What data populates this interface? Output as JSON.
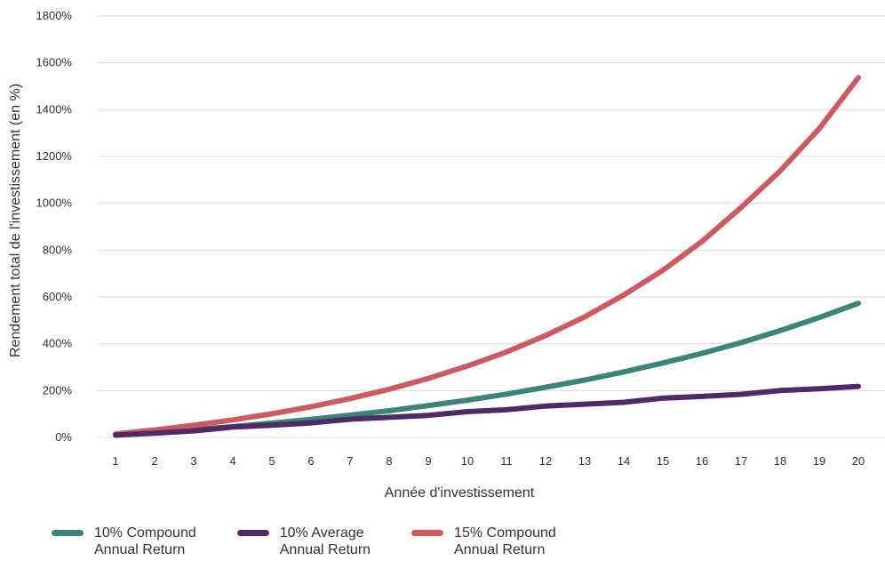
{
  "chart_data": {
    "type": "line",
    "xlabel": "Année d'investissement",
    "ylabel": "Rendement total de l'investissement (en %)",
    "x": [
      1,
      2,
      3,
      4,
      5,
      6,
      7,
      8,
      9,
      10,
      11,
      12,
      13,
      14,
      15,
      16,
      17,
      18,
      19,
      20
    ],
    "xticks": [
      "1",
      "2",
      "3",
      "4",
      "5",
      "6",
      "7",
      "8",
      "9",
      "10",
      "11",
      "12",
      "13",
      "14",
      "15",
      "16",
      "17",
      "18",
      "19",
      "20"
    ],
    "yticks": [
      "0%",
      "200%",
      "400%",
      "600%",
      "800%",
      "1000%",
      "1200%",
      "1400%",
      "1600%",
      "1800%"
    ],
    "ylim": [
      0,
      1800
    ],
    "grid": true,
    "legend_position": "bottom-left",
    "series": [
      {
        "name": "10% Compound\nAnnual Return",
        "color": "#3a8478",
        "values": [
          10,
          21,
          33,
          46,
          61,
          77,
          95,
          114,
          136,
          159,
          185,
          214,
          245,
          280,
          318,
          359,
          405,
          456,
          512,
          573
        ]
      },
      {
        "name": "10% Average\nAnnual Return",
        "color": "#4e2a67",
        "values": [
          10,
          18,
          28,
          44,
          52,
          62,
          78,
          86,
          94,
          110,
          118,
          134,
          142,
          150,
          168,
          175,
          184,
          200,
          208,
          218
        ]
      },
      {
        "name": "15% Compound\nAnnual Return",
        "color": "#cd5a61",
        "values": [
          15,
          32,
          52,
          75,
          101,
          131,
          166,
          206,
          252,
          305,
          365,
          435,
          515,
          608,
          714,
          837,
          982,
          1138,
          1319,
          1537
        ]
      }
    ]
  }
}
